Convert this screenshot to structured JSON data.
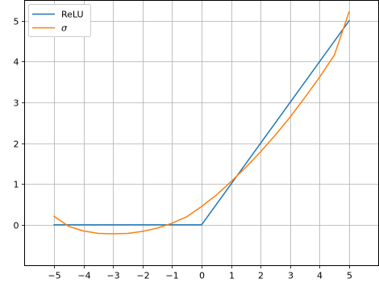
{
  "chart_data": {
    "type": "line",
    "title": "",
    "xlabel": "",
    "ylabel": "",
    "xlim": [
      -6,
      6
    ],
    "ylim": [
      -1,
      5.5
    ],
    "grid": true,
    "legend_position": "top-left",
    "x_ticks": [
      -5,
      -4,
      -3,
      -2,
      -1,
      0,
      1,
      2,
      3,
      4,
      5
    ],
    "x_tick_labels": [
      "−5",
      "−4",
      "−3",
      "−2",
      "−1",
      "0",
      "1",
      "2",
      "3",
      "4",
      "5"
    ],
    "y_ticks": [
      0,
      1,
      2,
      3,
      4,
      5
    ],
    "y_tick_labels": [
      "0",
      "1",
      "2",
      "3",
      "4",
      "5"
    ],
    "series": [
      {
        "name": "ReLU",
        "color": "#1f77b4",
        "x": [
          -5,
          0,
          5
        ],
        "y": [
          0,
          0,
          5
        ]
      },
      {
        "name": "σ",
        "color": "#ff7f0e",
        "x": [
          -5,
          -4.5,
          -4,
          -3.5,
          -3,
          -2.5,
          -2,
          -1.5,
          -1,
          -0.5,
          0,
          0.5,
          1,
          1.5,
          2,
          2.5,
          3,
          3.5,
          4,
          4.5,
          5
        ],
        "y": [
          0.21,
          -0.04,
          -0.15,
          -0.21,
          -0.22,
          -0.21,
          -0.16,
          -0.08,
          0.04,
          0.2,
          0.45,
          0.73,
          1.06,
          1.41,
          1.79,
          2.2,
          2.64,
          3.12,
          3.62,
          4.16,
          5.22
        ]
      }
    ]
  }
}
